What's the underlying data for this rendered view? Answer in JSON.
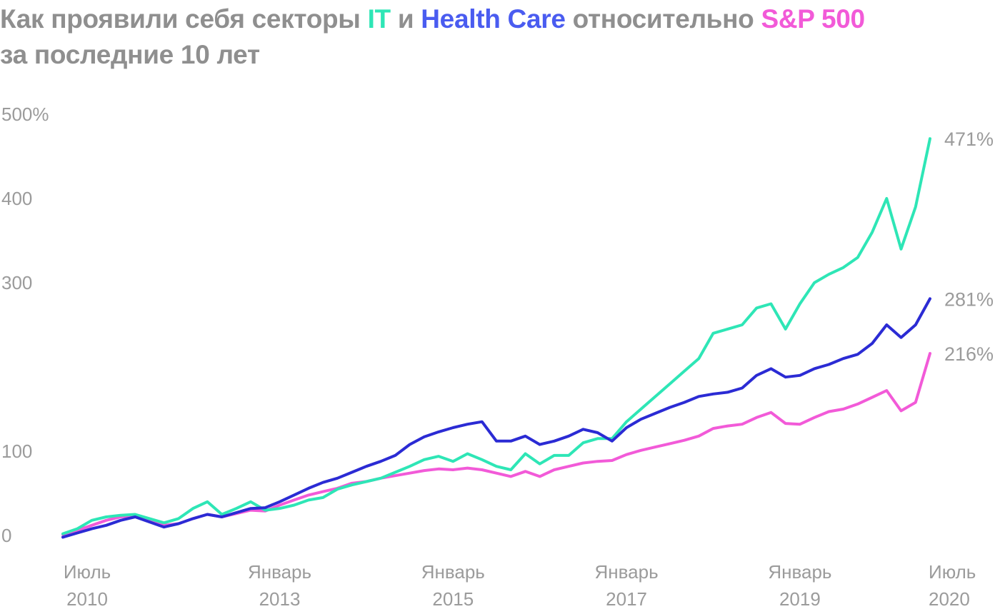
{
  "title": {
    "part1": "Как проявили себя секторы ",
    "it": "IT",
    "part2": " и ",
    "hc": "Health Care",
    "part3": " относительно ",
    "sp": "S&P 500",
    "line2": "за последние 10 лет"
  },
  "colors": {
    "title_gray": "#8f8f8f",
    "it": "#2ee6b6",
    "health_care": "#2b2bd4",
    "health_care_title": "#4a5cf0",
    "sp500": "#f25ad8",
    "axis_text": "#9b9b9b"
  },
  "chart_data": {
    "type": "line",
    "title": "Как проявили себя секторы IT и Health Care относительно S&P 500 за последние 10 лет",
    "xlabel": "",
    "ylabel": "",
    "ylim": [
      0,
      500
    ],
    "y_ticks": [
      {
        "value": 0,
        "label": "0"
      },
      {
        "value": 100,
        "label": "100"
      },
      {
        "value": 300,
        "label": "300"
      },
      {
        "value": 400,
        "label": "400"
      },
      {
        "value": 500,
        "label": "500%"
      }
    ],
    "x_range": [
      "2010-07",
      "2020-07"
    ],
    "x_ticks": [
      {
        "date": "2010-07",
        "line1": "Июль",
        "line2": "2010"
      },
      {
        "date": "2013-01",
        "line1": "Январь",
        "line2": "2013"
      },
      {
        "date": "2015-01",
        "line1": "Январь",
        "line2": "2015"
      },
      {
        "date": "2017-01",
        "line1": "Январь",
        "line2": "2017"
      },
      {
        "date": "2019-01",
        "line1": "Январь",
        "line2": "2019"
      },
      {
        "date": "2020-07",
        "line1": "Июль",
        "line2": "2020"
      }
    ],
    "grid": false,
    "legend": "none",
    "series": [
      {
        "name": "IT",
        "color_key": "it",
        "end_label": "471%",
        "points": [
          [
            "2010-07",
            2
          ],
          [
            "2010-09",
            8
          ],
          [
            "2010-11",
            18
          ],
          [
            "2011-01",
            22
          ],
          [
            "2011-03",
            24
          ],
          [
            "2011-05",
            25
          ],
          [
            "2011-07",
            20
          ],
          [
            "2011-09",
            15
          ],
          [
            "2011-11",
            20
          ],
          [
            "2012-01",
            32
          ],
          [
            "2012-03",
            40
          ],
          [
            "2012-05",
            25
          ],
          [
            "2012-07",
            32
          ],
          [
            "2012-09",
            40
          ],
          [
            "2012-11",
            30
          ],
          [
            "2013-01",
            32
          ],
          [
            "2013-03",
            36
          ],
          [
            "2013-05",
            42
          ],
          [
            "2013-07",
            45
          ],
          [
            "2013-09",
            55
          ],
          [
            "2013-11",
            60
          ],
          [
            "2014-01",
            64
          ],
          [
            "2014-03",
            68
          ],
          [
            "2014-05",
            75
          ],
          [
            "2014-07",
            82
          ],
          [
            "2014-09",
            90
          ],
          [
            "2014-11",
            94
          ],
          [
            "2015-01",
            88
          ],
          [
            "2015-03",
            97
          ],
          [
            "2015-05",
            90
          ],
          [
            "2015-07",
            82
          ],
          [
            "2015-09",
            78
          ],
          [
            "2015-11",
            97
          ],
          [
            "2016-01",
            85
          ],
          [
            "2016-03",
            95
          ],
          [
            "2016-05",
            95
          ],
          [
            "2016-07",
            110
          ],
          [
            "2016-09",
            115
          ],
          [
            "2016-11",
            115
          ],
          [
            "2017-01",
            135
          ],
          [
            "2017-03",
            150
          ],
          [
            "2017-05",
            165
          ],
          [
            "2017-07",
            180
          ],
          [
            "2017-09",
            195
          ],
          [
            "2017-11",
            210
          ],
          [
            "2018-01",
            240
          ],
          [
            "2018-03",
            245
          ],
          [
            "2018-05",
            250
          ],
          [
            "2018-07",
            270
          ],
          [
            "2018-09",
            275
          ],
          [
            "2018-11",
            245
          ],
          [
            "2019-01",
            275
          ],
          [
            "2019-03",
            300
          ],
          [
            "2019-05",
            310
          ],
          [
            "2019-07",
            318
          ],
          [
            "2019-09",
            330
          ],
          [
            "2019-11",
            360
          ],
          [
            "2020-01",
            400
          ],
          [
            "2020-03",
            340
          ],
          [
            "2020-05",
            390
          ],
          [
            "2020-07",
            471
          ]
        ]
      },
      {
        "name": "Health Care",
        "color_key": "health_care",
        "end_label": "281%",
        "points": [
          [
            "2010-07",
            -2
          ],
          [
            "2010-09",
            3
          ],
          [
            "2010-11",
            8
          ],
          [
            "2011-01",
            12
          ],
          [
            "2011-03",
            18
          ],
          [
            "2011-05",
            22
          ],
          [
            "2011-07",
            16
          ],
          [
            "2011-09",
            10
          ],
          [
            "2011-11",
            14
          ],
          [
            "2012-01",
            20
          ],
          [
            "2012-03",
            25
          ],
          [
            "2012-05",
            22
          ],
          [
            "2012-07",
            27
          ],
          [
            "2012-09",
            32
          ],
          [
            "2012-11",
            33
          ],
          [
            "2013-01",
            40
          ],
          [
            "2013-03",
            48
          ],
          [
            "2013-05",
            56
          ],
          [
            "2013-07",
            63
          ],
          [
            "2013-09",
            68
          ],
          [
            "2013-11",
            75
          ],
          [
            "2014-01",
            82
          ],
          [
            "2014-03",
            88
          ],
          [
            "2014-05",
            95
          ],
          [
            "2014-07",
            108
          ],
          [
            "2014-09",
            117
          ],
          [
            "2014-11",
            123
          ],
          [
            "2015-01",
            128
          ],
          [
            "2015-03",
            132
          ],
          [
            "2015-05",
            135
          ],
          [
            "2015-07",
            112
          ],
          [
            "2015-09",
            112
          ],
          [
            "2015-11",
            118
          ],
          [
            "2016-01",
            108
          ],
          [
            "2016-03",
            112
          ],
          [
            "2016-05",
            118
          ],
          [
            "2016-07",
            126
          ],
          [
            "2016-09",
            122
          ],
          [
            "2016-11",
            112
          ],
          [
            "2017-01",
            128
          ],
          [
            "2017-03",
            138
          ],
          [
            "2017-05",
            145
          ],
          [
            "2017-07",
            152
          ],
          [
            "2017-09",
            158
          ],
          [
            "2017-11",
            165
          ],
          [
            "2018-01",
            168
          ],
          [
            "2018-03",
            170
          ],
          [
            "2018-05",
            175
          ],
          [
            "2018-07",
            190
          ],
          [
            "2018-09",
            198
          ],
          [
            "2018-11",
            188
          ],
          [
            "2019-01",
            190
          ],
          [
            "2019-03",
            198
          ],
          [
            "2019-05",
            203
          ],
          [
            "2019-07",
            210
          ],
          [
            "2019-09",
            215
          ],
          [
            "2019-11",
            228
          ],
          [
            "2020-01",
            250
          ],
          [
            "2020-03",
            235
          ],
          [
            "2020-05",
            250
          ],
          [
            "2020-07",
            281
          ]
        ]
      },
      {
        "name": "S&P 500",
        "color_key": "sp500",
        "end_label": "216%",
        "points": [
          [
            "2010-07",
            1
          ],
          [
            "2010-09",
            6
          ],
          [
            "2010-11",
            12
          ],
          [
            "2011-01",
            18
          ],
          [
            "2011-03",
            22
          ],
          [
            "2011-05",
            23
          ],
          [
            "2011-07",
            18
          ],
          [
            "2011-09",
            12
          ],
          [
            "2011-11",
            14
          ],
          [
            "2012-01",
            20
          ],
          [
            "2012-03",
            25
          ],
          [
            "2012-05",
            22
          ],
          [
            "2012-07",
            26
          ],
          [
            "2012-09",
            30
          ],
          [
            "2012-11",
            29
          ],
          [
            "2013-01",
            36
          ],
          [
            "2013-03",
            42
          ],
          [
            "2013-05",
            48
          ],
          [
            "2013-07",
            52
          ],
          [
            "2013-09",
            56
          ],
          [
            "2013-11",
            62
          ],
          [
            "2014-01",
            64
          ],
          [
            "2014-03",
            68
          ],
          [
            "2014-05",
            71
          ],
          [
            "2014-07",
            74
          ],
          [
            "2014-09",
            77
          ],
          [
            "2014-11",
            79
          ],
          [
            "2015-01",
            78
          ],
          [
            "2015-03",
            80
          ],
          [
            "2015-05",
            78
          ],
          [
            "2015-07",
            74
          ],
          [
            "2015-09",
            70
          ],
          [
            "2015-11",
            76
          ],
          [
            "2016-01",
            70
          ],
          [
            "2016-03",
            78
          ],
          [
            "2016-05",
            82
          ],
          [
            "2016-07",
            86
          ],
          [
            "2016-09",
            88
          ],
          [
            "2016-11",
            89
          ],
          [
            "2017-01",
            96
          ],
          [
            "2017-03",
            101
          ],
          [
            "2017-05",
            105
          ],
          [
            "2017-07",
            109
          ],
          [
            "2017-09",
            113
          ],
          [
            "2017-11",
            118
          ],
          [
            "2018-01",
            127
          ],
          [
            "2018-03",
            130
          ],
          [
            "2018-05",
            132
          ],
          [
            "2018-07",
            140
          ],
          [
            "2018-09",
            146
          ],
          [
            "2018-11",
            133
          ],
          [
            "2019-01",
            132
          ],
          [
            "2019-03",
            140
          ],
          [
            "2019-05",
            147
          ],
          [
            "2019-07",
            150
          ],
          [
            "2019-09",
            156
          ],
          [
            "2019-11",
            164
          ],
          [
            "2020-01",
            172
          ],
          [
            "2020-03",
            148
          ],
          [
            "2020-05",
            158
          ],
          [
            "2020-07",
            216
          ]
        ]
      }
    ]
  }
}
